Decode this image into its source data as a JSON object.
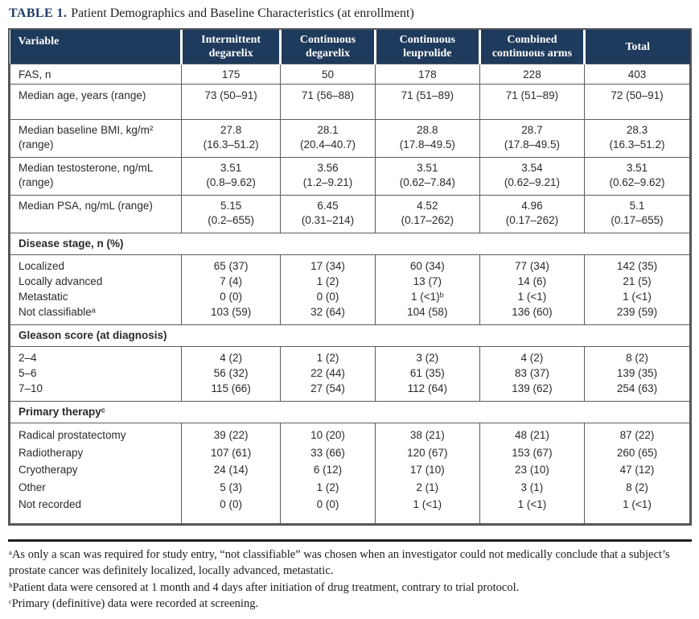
{
  "title": {
    "label": "TABLE 1.",
    "text": "Patient Demographics and Baseline Characteristics (at enrollment)"
  },
  "colors": {
    "header_bg": "#1e3a5c",
    "header_text": "#ffffff",
    "title_accent": "#1d3c63",
    "border": "#5a5b5e",
    "text": "#2a2a2a"
  },
  "table": {
    "columns": [
      "Variable",
      "Intermittent degarelix",
      "Continuous degarelix",
      "Continuous leuprolide",
      "Combined continuous arms",
      "Total"
    ],
    "body": [
      {
        "type": "row",
        "style": "short",
        "label": "FAS, n",
        "values": [
          "175",
          "50",
          "178",
          "228",
          "403"
        ]
      },
      {
        "type": "row",
        "style": "tall",
        "label": "Median age, years (range)",
        "values": [
          "73 (50–91)",
          "71 (56–88)",
          "71 (51–89)",
          "71 (51–89)",
          "72 (50–91)"
        ]
      },
      {
        "type": "row",
        "style": "multi",
        "label": "Median baseline BMI, kg/m² (range)",
        "values": [
          [
            "27.8",
            "(16.3–51.2)"
          ],
          [
            "28.1",
            "(20.4–40.7)"
          ],
          [
            "28.8",
            "(17.8–49.5)"
          ],
          [
            "28.7",
            "(17.8–49.5)"
          ],
          [
            "28.3",
            "(16.3–51.2)"
          ]
        ]
      },
      {
        "type": "row",
        "style": "multi",
        "label": "Median testosterone, ng/mL (range)",
        "values": [
          [
            "3.51",
            "(0.8–9.62)"
          ],
          [
            "3.56",
            "(1.2–9.21)"
          ],
          [
            "3.51",
            "(0.62–7.84)"
          ],
          [
            "3.54",
            "(0.62–9.21)"
          ],
          [
            "3.51",
            "(0.62–9.62)"
          ]
        ]
      },
      {
        "type": "row",
        "style": "multi",
        "label": "Median PSA, ng/mL (range)",
        "values": [
          [
            "5.15",
            "(0.2–655)"
          ],
          [
            "6.45",
            "(0.31–214)"
          ],
          [
            "4.52",
            "(0.17–262)"
          ],
          [
            "4.96",
            "(0.17–262)"
          ],
          [
            "5.1",
            "(0.17–655)"
          ]
        ]
      },
      {
        "type": "section",
        "label": "Disease stage, n (%)"
      },
      {
        "type": "group",
        "rows": [
          {
            "label": "Localized",
            "values": [
              "65 (37)",
              "17 (34)",
              "60 (34)",
              "77 (34)",
              "142 (35)"
            ]
          },
          {
            "label": "Locally advanced",
            "values": [
              "7 (4)",
              "1 (2)",
              "13 (7)",
              "14 (6)",
              "21 (5)"
            ]
          },
          {
            "label": "Metastatic",
            "values": [
              "0 (0)",
              "0 (0)",
              "1 (<1)ᵇ",
              "1 (<1)",
              "1 (<1)"
            ]
          },
          {
            "label": "Not classifiableᵃ",
            "values": [
              "103 (59)",
              "32 (64)",
              "104 (58)",
              "136 (60)",
              "239 (59)"
            ]
          }
        ]
      },
      {
        "type": "section",
        "label": "Gleason score (at diagnosis)"
      },
      {
        "type": "group",
        "rows": [
          {
            "label": "2–4",
            "values": [
              "4 (2)",
              "1 (2)",
              "3 (2)",
              "4 (2)",
              "8 (2)"
            ]
          },
          {
            "label": "5–6",
            "values": [
              "56 (32)",
              "22 (44)",
              "61 (35)",
              "83 (37)",
              "139 (35)"
            ]
          },
          {
            "label": "7–10",
            "values": [
              "115 (66)",
              "27 (54)",
              "112 (64)",
              "139 (62)",
              "254 (63)"
            ]
          }
        ]
      },
      {
        "type": "section",
        "label": "Primary therapyᶜ"
      },
      {
        "type": "group",
        "rows": [
          {
            "label": "Radical prostatectomy",
            "values": [
              "39 (22)",
              "10 (20)",
              "38 (21)",
              "48 (21)",
              "87 (22)"
            ]
          },
          {
            "label": "Radiotherapy",
            "values": [
              "107 (61)",
              "33 (66)",
              "120 (67)",
              "153 (67)",
              "260 (65)"
            ]
          },
          {
            "label": "Cryotherapy",
            "values": [
              "24 (14)",
              "6 (12)",
              "17 (10)",
              "23 (10)",
              "47 (12)"
            ]
          },
          {
            "label": "Other",
            "values": [
              "5 (3)",
              "1 (2)",
              "2 (1)",
              "3 (1)",
              "8 (2)"
            ]
          },
          {
            "label": "Not recorded",
            "values": [
              "0 (0)",
              "0 (0)",
              "1 (<1)",
              "1 (<1)",
              "1 (<1)"
            ]
          }
        ]
      }
    ]
  },
  "footnotes": [
    "ᵃAs only a scan was required for study entry, “not classifiable” was chosen when an investigator could not medically conclude that a subject’s prostate cancer was definitely localized, locally advanced, metastatic.",
    "ᵇPatient data were censored at 1 month and 4 days after initiation of drug treatment, contrary to trial protocol.",
    "ᶜPrimary (definitive) data were recorded at screening."
  ]
}
